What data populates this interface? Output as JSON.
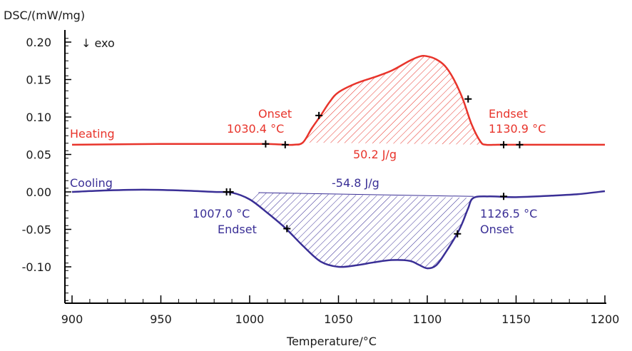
{
  "chart_data": {
    "type": "line",
    "ylabel": "DSC/(mW/mg)",
    "xlabel": "Temperature/°C",
    "exo_label": "↓ exo",
    "xlim": [
      900,
      1200
    ],
    "ylim": [
      -0.15,
      0.22
    ],
    "x_ticks": [
      900,
      950,
      1000,
      1050,
      1100,
      1150,
      1200
    ],
    "y_ticks": [
      0.2,
      0.15,
      0.1,
      0.05,
      0.0,
      -0.05,
      -0.1
    ],
    "y_tick_labels": [
      "0.20",
      "0.15",
      "0.10",
      "0.05",
      "0.00",
      "-0.05",
      "-0.10"
    ],
    "colors": {
      "heating": "#e8342b",
      "cooling": "#3a2f96"
    },
    "series": [
      {
        "name": "Heating",
        "x": [
          900,
          950,
          1000,
          1010,
          1020,
          1025,
          1030,
          1035,
          1040,
          1045,
          1050,
          1060,
          1070,
          1080,
          1090,
          1096,
          1100,
          1105,
          1110,
          1115,
          1120,
          1125,
          1130,
          1133,
          1140,
          1150,
          1200
        ],
        "y": [
          0.063,
          0.064,
          0.064,
          0.064,
          0.063,
          0.063,
          0.066,
          0.085,
          0.102,
          0.12,
          0.133,
          0.145,
          0.153,
          0.162,
          0.175,
          0.181,
          0.181,
          0.177,
          0.168,
          0.15,
          0.124,
          0.09,
          0.067,
          0.063,
          0.063,
          0.063,
          0.063
        ]
      },
      {
        "name": "Cooling",
        "x": [
          900,
          920,
          940,
          960,
          980,
          990,
          1000,
          1010,
          1020,
          1030,
          1040,
          1050,
          1060,
          1070,
          1080,
          1090,
          1095,
          1100,
          1105,
          1110,
          1117,
          1120,
          1123,
          1126,
          1135,
          1150,
          1170,
          1185,
          1200
        ],
        "y": [
          0.0,
          0.002,
          0.003,
          0.002,
          0.0,
          -0.001,
          -0.01,
          -0.028,
          -0.048,
          -0.072,
          -0.093,
          -0.1,
          -0.098,
          -0.094,
          -0.091,
          -0.092,
          -0.097,
          -0.102,
          -0.098,
          -0.082,
          -0.055,
          -0.04,
          -0.022,
          -0.008,
          -0.006,
          -0.007,
          -0.005,
          -0.003,
          0.001
        ]
      }
    ],
    "series_labels": {
      "heating": "Heating",
      "cooling": "Cooling"
    },
    "markers": {
      "heating": [
        [
          1009,
          0.064
        ],
        [
          1020,
          0.063
        ],
        [
          1039,
          0.102
        ],
        [
          1123,
          0.124
        ],
        [
          1143,
          0.063
        ],
        [
          1152,
          0.063
        ]
      ],
      "cooling": [
        [
          987,
          0.0
        ],
        [
          989,
          0.0
        ],
        [
          1021,
          -0.049
        ],
        [
          1117,
          -0.056
        ],
        [
          1143,
          -0.006
        ]
      ]
    },
    "annotations": {
      "heating_onset_label": "Onset",
      "heating_onset_value": "1030.4 °C",
      "heating_endset_label": "Endset",
      "heating_endset_value": "1130.9 °C",
      "heating_area": "50.2 J/g",
      "cooling_endset_value": "1007.0 °C",
      "cooling_endset_label": "Endset",
      "cooling_onset_value": "1126.5 °C",
      "cooling_onset_label": "Onset",
      "cooling_area": "-54.8 J/g"
    }
  }
}
